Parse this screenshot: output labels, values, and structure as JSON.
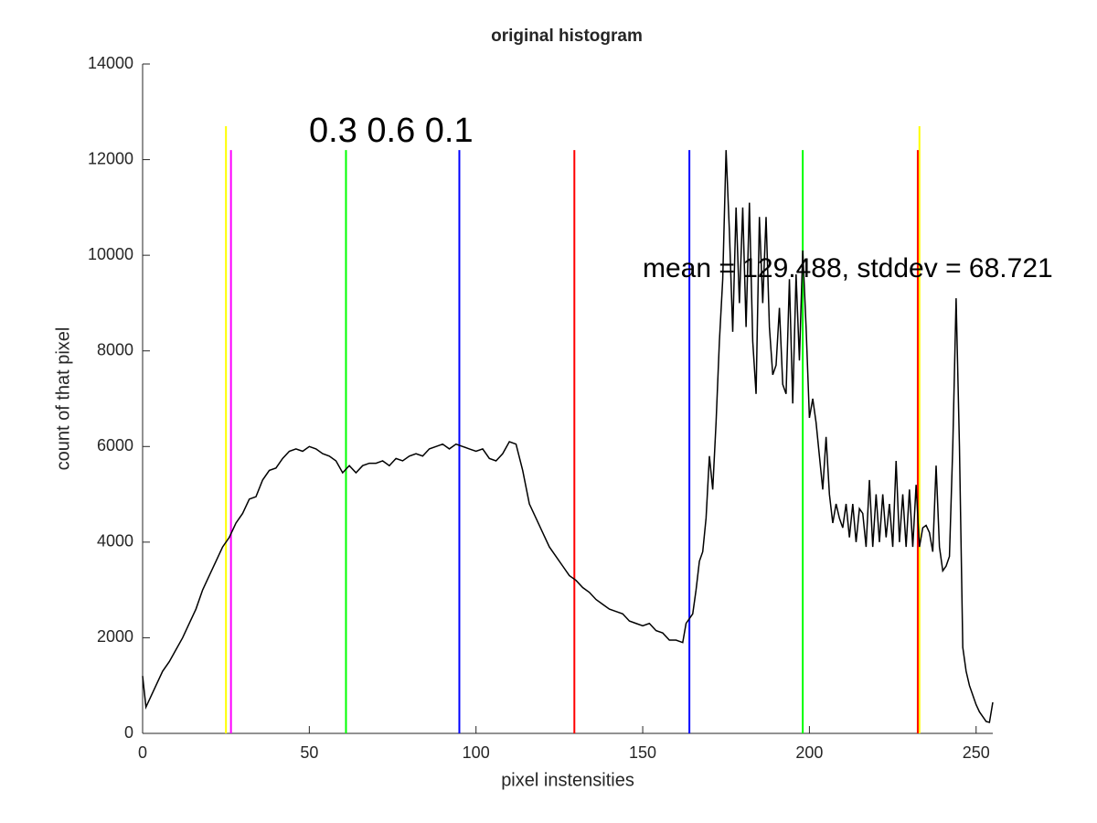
{
  "chart_data": {
    "type": "line",
    "title": "original histogram",
    "xlabel": "pixel instensities",
    "ylabel": "count of that pixel",
    "annotations": [
      "0.3 0.6 0.1",
      "mean = 129.488, stddev = 68.721"
    ],
    "xlim": [
      0,
      255
    ],
    "ylim": [
      0,
      14000
    ],
    "xticks": [
      0,
      50,
      100,
      150,
      200,
      250
    ],
    "yticks": [
      0,
      2000,
      4000,
      6000,
      8000,
      10000,
      12000,
      14000
    ],
    "vlines": [
      {
        "x": 25,
        "top": 12700,
        "color": "#ffff00"
      },
      {
        "x": 26.5,
        "top": 12200,
        "color": "#ff00ff"
      },
      {
        "x": 61,
        "top": 12200,
        "color": "#00ff00"
      },
      {
        "x": 95,
        "top": 12200,
        "color": "#0000ff"
      },
      {
        "x": 129.5,
        "top": 12200,
        "color": "#ff0000"
      },
      {
        "x": 164,
        "top": 12200,
        "color": "#0000ff"
      },
      {
        "x": 198,
        "top": 12200,
        "color": "#00ff00"
      },
      {
        "x": 233,
        "top": 12700,
        "color": "#ffff00"
      },
      {
        "x": 232.5,
        "top": 12200,
        "color": "#ff0000"
      }
    ],
    "series": [
      {
        "color": "#000000",
        "x": [
          0,
          1,
          2,
          4,
          6,
          8,
          10,
          12,
          14,
          16,
          18,
          20,
          22,
          24,
          26,
          28,
          30,
          32,
          34,
          36,
          38,
          40,
          42,
          44,
          46,
          48,
          50,
          52,
          54,
          56,
          58,
          60,
          62,
          64,
          66,
          68,
          70,
          72,
          74,
          76,
          78,
          80,
          82,
          84,
          86,
          88,
          90,
          92,
          94,
          96,
          98,
          100,
          102,
          104,
          106,
          108,
          110,
          112,
          114,
          116,
          118,
          120,
          122,
          124,
          126,
          128,
          130,
          132,
          134,
          136,
          138,
          140,
          142,
          144,
          146,
          148,
          150,
          152,
          154,
          156,
          158,
          160,
          162,
          163,
          165,
          166,
          167,
          168,
          169,
          170,
          171,
          172,
          173,
          174,
          175,
          176,
          177,
          178,
          179,
          180,
          181,
          182,
          183,
          184,
          185,
          186,
          187,
          188,
          189,
          190,
          191,
          192,
          193,
          194,
          195,
          196,
          197,
          198,
          199,
          200,
          201,
          202,
          203,
          204,
          205,
          206,
          207,
          208,
          209,
          210,
          211,
          212,
          213,
          214,
          215,
          216,
          217,
          218,
          219,
          220,
          221,
          222,
          223,
          224,
          225,
          226,
          227,
          228,
          229,
          230,
          231,
          232,
          233,
          234,
          235,
          236,
          237,
          238,
          239,
          240,
          241,
          242,
          243,
          244,
          245,
          246,
          247,
          248,
          249,
          250,
          251,
          252,
          253,
          254,
          255
        ],
        "values": [
          1200,
          550,
          700,
          1000,
          1300,
          1500,
          1750,
          2000,
          2300,
          2600,
          3000,
          3300,
          3600,
          3900,
          4100,
          4400,
          4600,
          4900,
          4950,
          5300,
          5500,
          5550,
          5750,
          5900,
          5950,
          5900,
          6000,
          5950,
          5850,
          5800,
          5700,
          5450,
          5600,
          5450,
          5600,
          5650,
          5650,
          5700,
          5600,
          5750,
          5700,
          5800,
          5850,
          5800,
          5950,
          6000,
          6050,
          5950,
          6050,
          6000,
          5950,
          5900,
          5950,
          5750,
          5700,
          5850,
          6100,
          6050,
          5500,
          4800,
          4500,
          4200,
          3900,
          3700,
          3500,
          3300,
          3200,
          3050,
          2950,
          2800,
          2700,
          2600,
          2550,
          2500,
          2350,
          2300,
          2250,
          2300,
          2150,
          2100,
          1950,
          1950,
          1900,
          2300,
          2500,
          3000,
          3600,
          3800,
          4500,
          5800,
          5100,
          6500,
          8200,
          9500,
          12200,
          10500,
          8400,
          11000,
          9000,
          11000,
          8500,
          11100,
          8200,
          7100,
          10800,
          9000,
          10800,
          8500,
          7500,
          7700,
          8900,
          7300,
          7100,
          9500,
          6900,
          9600,
          7800,
          10100,
          8500,
          6600,
          7000,
          6500,
          5800,
          5100,
          6200,
          5000,
          4400,
          4800,
          4500,
          4300,
          4800,
          4100,
          4800,
          4000,
          4700,
          4600,
          3900,
          5300,
          3900,
          5000,
          4000,
          5000,
          4100,
          4800,
          3900,
          5700,
          4000,
          5000,
          3900,
          5100,
          3900,
          5200,
          3900,
          4300,
          4350,
          4200,
          3800,
          5600,
          3900,
          3400,
          3500,
          3700,
          6000,
          9100,
          6000,
          1800,
          1300,
          1000,
          800,
          600,
          450,
          350,
          250,
          230,
          650
        ]
      }
    ]
  }
}
